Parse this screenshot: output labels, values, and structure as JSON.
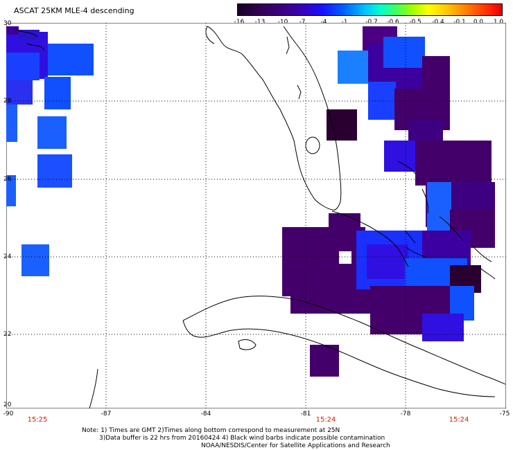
{
  "title": "ASCAT 25KM MLE-4 descending",
  "colorbar": {
    "labels": [
      "-16",
      "-13",
      "-10",
      "-7",
      "-4",
      "-1",
      "-0.7",
      "-0.6",
      "-0.5",
      "-0.4",
      "-0.1",
      "0.0",
      "1.0"
    ]
  },
  "axes": {
    "lat_labels": [
      "30",
      "28",
      "26",
      "24",
      "22",
      "20"
    ],
    "lon_labels": [
      "-90",
      "-87",
      "-84",
      "-81",
      "-78",
      "-75"
    ]
  },
  "pass_times": [
    "15:25",
    "15:24",
    "15:24"
  ],
  "notes": {
    "line1": "Note: 1) Times are GMT 2)Times along bottom correspond to measurement at 25N",
    "line2": "3)Data buffer is 22 hrs from 20160424 4) Black wind barbs indicate possible contamination",
    "line3": "NOAA/NESDIS/Center for Satellite Applications and Research"
  },
  "colors": {
    "dark_purple": "#44006a",
    "purple": "#3c0096",
    "blue_violet": "#3010e0",
    "blue": "#1050ff",
    "cyan_blue": "#1a80ff",
    "near_black": "#2a0030",
    "coastline": "#000000"
  }
}
